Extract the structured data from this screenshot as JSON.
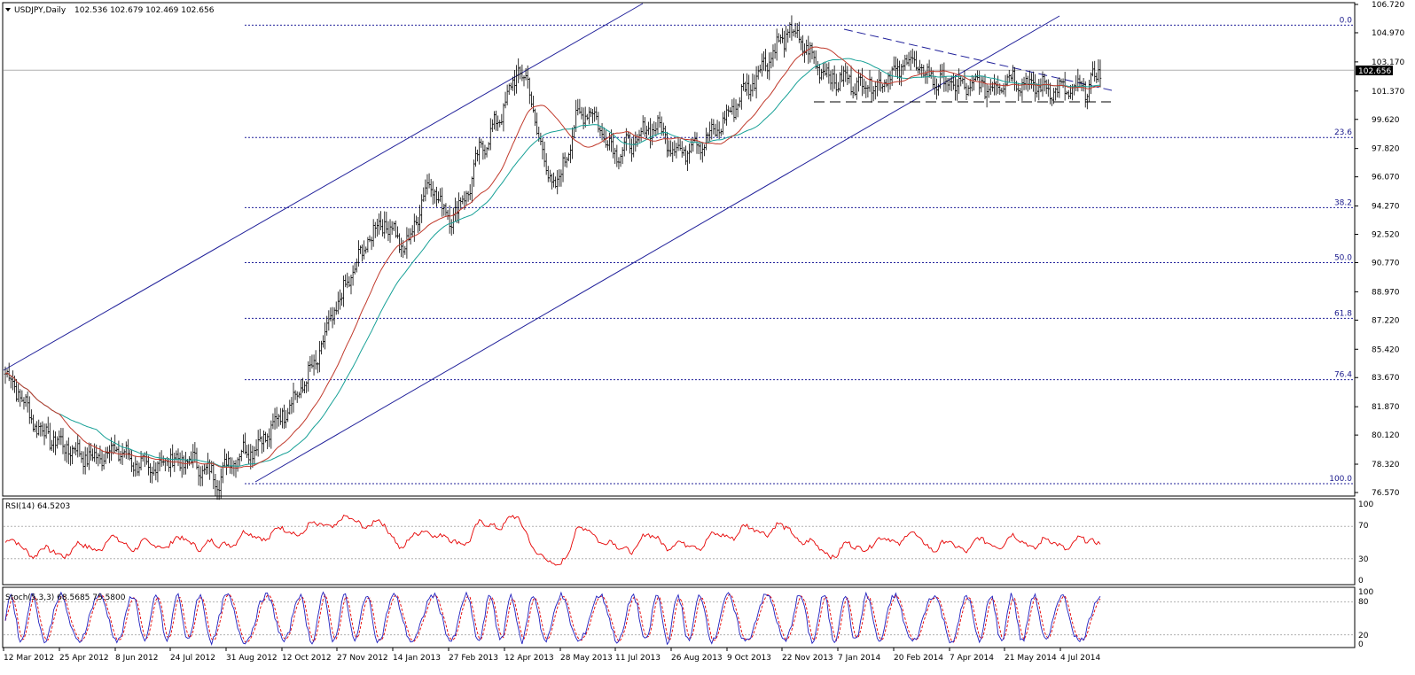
{
  "window": {
    "header": "USDJPY,Daily",
    "ohlc": "102.536 102.679 102.469 102.656",
    "price_badge": "102.656"
  },
  "colors": {
    "candle": "#000000",
    "ma_fast": "#c0392b",
    "ma_slow": "#16a096",
    "channel": "#20209a",
    "fib": "#20209a",
    "rsi": "#e60000",
    "stoch_main": "#1f1fbf",
    "stoch_signal": "#e60000",
    "badge_bg": "#000000",
    "badge_fg": "#ffffff"
  },
  "rsi_panel": {
    "label": "RSI(14) 64.5203",
    "ticks": [
      "100",
      "70",
      "30",
      "0"
    ]
  },
  "stoch_panel": {
    "label": "Stoch(5,3,3) 68.5685 75.5800",
    "ticks": [
      "100",
      "80",
      "20",
      "0"
    ]
  },
  "chart_data": {
    "type": "candlestick",
    "symbol": "USDJPY",
    "timeframe": "Daily",
    "price_range": [
      76.57,
      106.72
    ],
    "price_ticks": [
      106.72,
      104.97,
      103.17,
      101.37,
      99.62,
      97.82,
      96.07,
      94.27,
      92.52,
      90.77,
      88.97,
      87.22,
      85.42,
      83.67,
      81.87,
      80.12,
      78.32,
      76.57
    ],
    "price_tick_labels": [
      "106.720",
      "104.970",
      "103.170",
      "101.370",
      "99.620",
      "97.820",
      "96.070",
      "94.270",
      "92.520",
      "90.770",
      "88.970",
      "87.220",
      "85.420",
      "83.670",
      "81.870",
      "80.120",
      "78.320",
      "76.570"
    ],
    "date_labels": [
      "12 Mar 2012",
      "25 Apr 2012",
      "8 Jun 2012",
      "24 Jul 2012",
      "31 Aug 2012",
      "12 Oct 2012",
      "27 Nov 2012",
      "14 Jan 2013",
      "27 Feb 2013",
      "12 Apr 2013",
      "28 May 2013",
      "11 Jul 2013",
      "26 Aug 2013",
      "9 Oct 2013",
      "22 Nov 2013",
      "7 Jan 2014",
      "20 Feb 2014",
      "7 Apr 2014",
      "21 May 2014",
      "4 Jul 2014"
    ],
    "fibonacci": [
      {
        "label": "0.0",
        "price": 105.44
      },
      {
        "label": "23.6",
        "price": 98.5
      },
      {
        "label": "38.2",
        "price": 94.17
      },
      {
        "label": "50.0",
        "price": 90.77
      },
      {
        "label": "61.8",
        "price": 87.33
      },
      {
        "label": "76.4",
        "price": 83.54
      },
      {
        "label": "100.0",
        "price": 77.12
      }
    ],
    "last_price": 102.656,
    "close_series": [
      83.9,
      83.2,
      82.0,
      80.9,
      80.2,
      79.8,
      79.5,
      79.2,
      78.9,
      78.6,
      78.9,
      79.3,
      79.0,
      78.6,
      78.2,
      77.9,
      78.4,
      78.7,
      78.4,
      78.6,
      78.2,
      77.8,
      77.4,
      78.4,
      78.9,
      79.2,
      79.5,
      80.1,
      81.0,
      81.8,
      82.5,
      83.5,
      84.5,
      86.2,
      87.8,
      89.0,
      90.4,
      91.6,
      92.8,
      93.3,
      92.8,
      91.6,
      92.5,
      94.8,
      95.8,
      94.2,
      93.6,
      94.4,
      95.6,
      97.8,
      98.6,
      99.8,
      101.2,
      102.8,
      101.6,
      98.6,
      96.2,
      95.4,
      97.8,
      99.6,
      100.3,
      99.6,
      98.4,
      97.6,
      97.9,
      98.1,
      98.9,
      99.3,
      98.7,
      97.8,
      97.6,
      98.3,
      98.2,
      98.7,
      99.4,
      100.2,
      101.2,
      101.8,
      102.9,
      103.6,
      104.4,
      105.1,
      104.5,
      103.6,
      102.9,
      102.3,
      101.9,
      102.2,
      101.6,
      102.1,
      101.5,
      102.5,
      102.3,
      103.5,
      102.9,
      102.4,
      102.0,
      101.9,
      101.8,
      101.5,
      101.8,
      101.7,
      101.6,
      102.1,
      102.2,
      101.9,
      101.7,
      101.6,
      101.5,
      101.4,
      101.3,
      101.5,
      101.8,
      102.6
    ]
  }
}
